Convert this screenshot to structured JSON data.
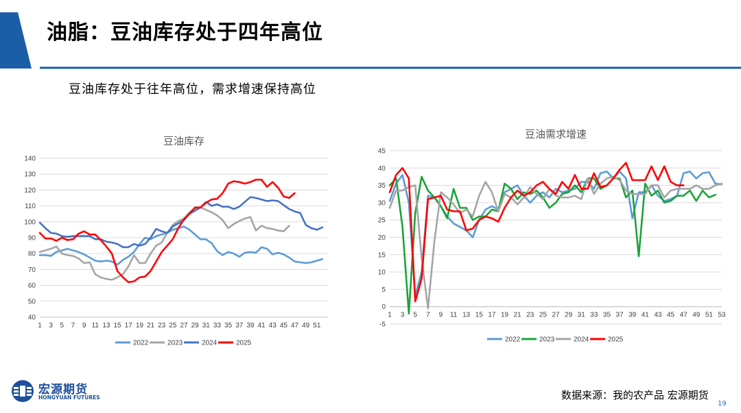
{
  "page": {
    "title": "油脂：豆油库存处于四年高位",
    "subtitle": "豆油库存处于往年高位，需求增速保持高位",
    "source": "数据来源：我的农产品 宏源期货",
    "page_number": "19"
  },
  "logo": {
    "name_cn": "宏源期货",
    "name_en": "HONGYUAN FUTURES"
  },
  "colors": {
    "accent": "#1a5ea8",
    "s2022": "#5b9bd5",
    "s2023": "#1aa33a",
    "s2023_left": "#a5a5a5",
    "s2024": "#4472c4",
    "s2024_right": "#a5a5a5",
    "s2025": "#ff0000"
  },
  "chart_data": [
    {
      "type": "line",
      "title": "豆油库存",
      "xlabel": "",
      "ylabel": "",
      "ylim": [
        40,
        140
      ],
      "yticks": [
        40,
        50,
        60,
        70,
        80,
        90,
        100,
        110,
        120,
        130,
        140
      ],
      "xlim": [
        1,
        53
      ],
      "xticks": [
        1,
        3,
        5,
        7,
        9,
        11,
        13,
        15,
        17,
        19,
        21,
        23,
        25,
        27,
        29,
        31,
        33,
        35,
        37,
        39,
        41,
        43,
        45,
        47,
        49,
        51
      ],
      "grid": true,
      "legend": "bottom",
      "series": [
        {
          "name": "2022",
          "color": "#5b9bd5",
          "values": [
            79,
            79,
            78.5,
            81,
            82,
            83,
            82,
            81,
            79.5,
            77.5,
            75.5,
            75,
            75.5,
            75,
            73,
            76,
            78,
            81,
            86,
            90,
            89,
            91,
            92,
            93,
            95,
            96,
            97,
            95,
            92,
            89,
            89,
            86.5,
            81.5,
            79,
            81,
            80,
            78,
            80.5,
            81,
            80.5,
            84,
            83,
            79.5,
            80.5,
            79.5,
            77.5,
            75,
            74.5,
            74,
            74.5,
            75.5,
            76.5
          ]
        },
        {
          "name": "2023",
          "color": "#a5a5a5",
          "values": [
            81,
            82,
            83,
            84.5,
            80,
            79,
            78.5,
            77,
            74,
            74.5,
            67,
            65,
            64,
            63.5,
            65,
            67,
            72,
            79,
            74,
            74,
            80,
            85,
            87,
            93,
            98,
            100.5,
            102,
            106,
            108.5,
            109,
            107.5,
            106,
            104,
            101,
            96,
            98.5,
            100.5,
            102,
            103,
            94.5,
            97.5,
            96,
            95.5,
            94.5,
            94,
            97.5
          ]
        },
        {
          "name": "2024",
          "color": "#4472c4",
          "values": [
            99.5,
            96,
            93,
            92.5,
            91,
            90.5,
            91,
            91,
            91,
            91,
            89,
            89,
            87.5,
            87,
            86,
            84,
            84,
            86,
            85,
            86,
            90,
            95.5,
            94,
            93,
            97,
            99,
            101,
            105,
            107,
            109,
            112.5,
            110,
            111,
            109.5,
            109.5,
            108,
            109.5,
            112.5,
            115.5,
            115,
            114,
            113,
            113.5,
            113,
            110.5,
            108,
            106.5,
            105.5,
            98,
            96,
            95,
            96.5
          ]
        },
        {
          "name": "2025",
          "color": "#ff0000",
          "values": [
            93,
            89.5,
            89.5,
            88,
            90,
            88.5,
            89,
            92.5,
            94,
            92,
            92,
            88.5,
            84.5,
            80,
            69,
            65,
            62,
            62.5,
            65,
            65.5,
            69,
            75,
            81,
            85,
            89,
            96,
            101.5,
            105,
            109,
            109,
            112,
            114,
            114.5,
            118,
            124,
            125.5,
            125,
            124,
            125,
            126.5,
            126.5,
            122,
            125,
            121.5,
            116,
            115,
            118
          ]
        }
      ]
    },
    {
      "type": "line",
      "title": "豆油需求增速",
      "xlabel": "",
      "ylabel": "",
      "ylim": [
        -5,
        45
      ],
      "yticks": [
        -5,
        0,
        5,
        10,
        15,
        20,
        25,
        30,
        35,
        40,
        45
      ],
      "xlim": [
        1,
        53
      ],
      "xticks": [
        1,
        3,
        5,
        7,
        9,
        11,
        13,
        15,
        17,
        19,
        21,
        23,
        25,
        27,
        29,
        31,
        33,
        35,
        37,
        39,
        41,
        43,
        45,
        47,
        49,
        51,
        53
      ],
      "grid": true,
      "legend": "bottom",
      "series": [
        {
          "name": "2022",
          "color": "#5b9bd5",
          "values": [
            30.5,
            35.5,
            38,
            30,
            3,
            10,
            32,
            31.5,
            29,
            26,
            24,
            23,
            22,
            20,
            25,
            28,
            29,
            28,
            33,
            34,
            35,
            32,
            30,
            32,
            33,
            31.5,
            34,
            33,
            33.5,
            34,
            36,
            36,
            34,
            38.5,
            39,
            37,
            39,
            37,
            25.5,
            33,
            33,
            35,
            32,
            30.5,
            31,
            32,
            38.5,
            39,
            37,
            38.5,
            38.8,
            35.5,
            35.3
          ]
        },
        {
          "name": "2023",
          "color": "#1aa33a",
          "values": [
            35,
            37,
            23,
            -2,
            27,
            37.5,
            33.5,
            31.5,
            29,
            25.5,
            34,
            28.5,
            28.5,
            25,
            26,
            26,
            28,
            27.5,
            35.5,
            34,
            31,
            33,
            32.5,
            33.5,
            31.5,
            28.5,
            30,
            32.5,
            33,
            35,
            33,
            37,
            37,
            34,
            35,
            37,
            37,
            31.5,
            33.5,
            14.5,
            35.5,
            32,
            33.5,
            30,
            30.5,
            32,
            32,
            33.5,
            30.5,
            33.5,
            31.5,
            32.3
          ]
        },
        {
          "name": "2024",
          "color": "#a5a5a5",
          "values": [
            28.5,
            33.5,
            33.5,
            34.5,
            35,
            14,
            -0.5,
            19,
            33,
            31.5,
            29.5,
            27,
            28,
            26,
            32,
            36,
            33,
            27.5,
            32.5,
            31.5,
            29.5,
            31.5,
            34.5,
            32.5,
            31,
            34,
            32,
            31.5,
            31.5,
            32,
            31,
            37,
            32.5,
            35.5,
            37,
            37.5,
            36.5,
            33.5,
            32.5,
            32.5,
            32.5,
            35,
            35,
            31.5,
            33.5,
            34,
            34,
            34,
            35,
            34,
            34,
            35,
            35.5
          ]
        },
        {
          "name": "2025",
          "color": "#ff0000",
          "values": [
            33,
            38,
            40,
            37,
            1.5,
            8,
            31,
            31.5,
            32,
            28,
            27.5,
            27.5,
            22,
            22.5,
            25,
            26,
            25.5,
            24.5,
            28.5,
            31.5,
            33.5,
            32,
            33,
            35,
            36,
            34,
            32.5,
            36,
            34,
            38,
            34,
            34,
            38.5,
            34.5,
            35,
            37,
            39.5,
            41.5,
            36.5,
            36.5,
            36.5,
            40.5,
            36.5,
            40.5,
            36,
            35,
            35
          ]
        }
      ]
    }
  ]
}
